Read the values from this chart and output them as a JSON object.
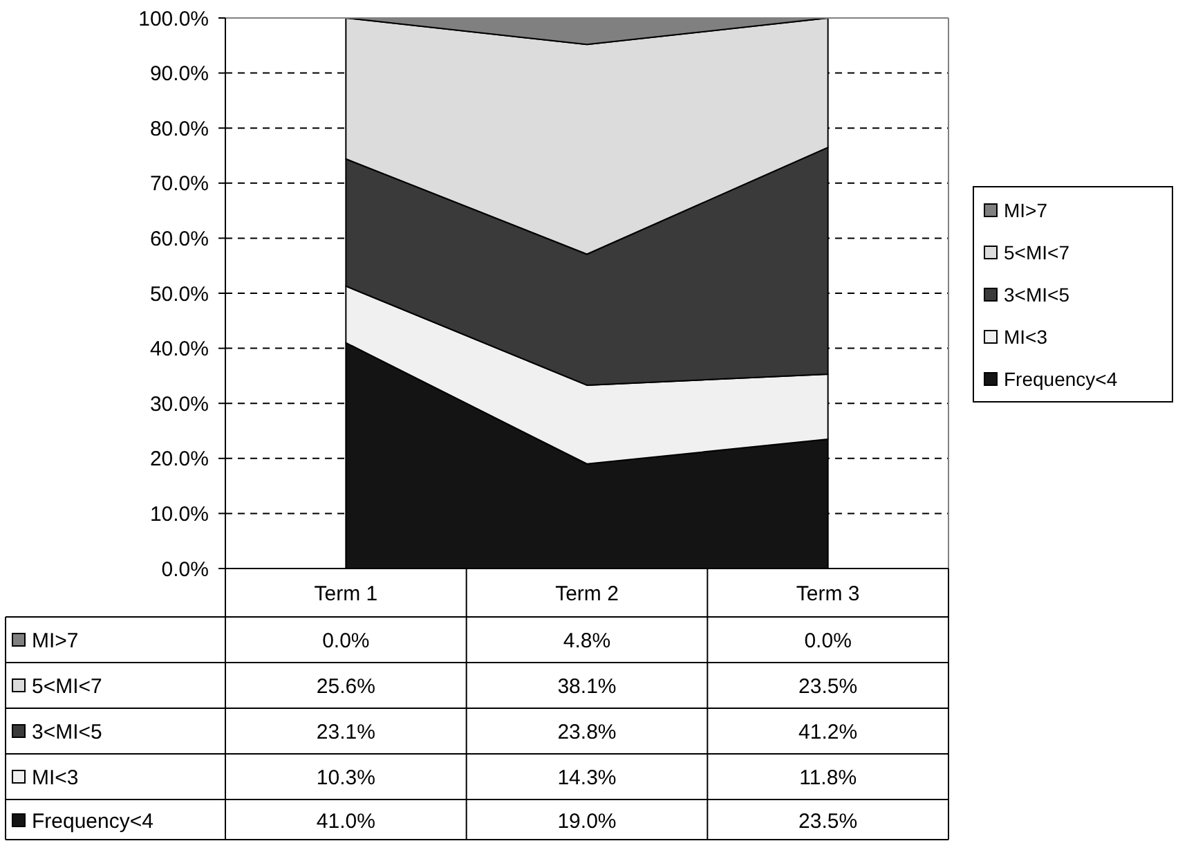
{
  "chart_data": {
    "type": "area",
    "stacked": true,
    "categories": [
      "Term 1",
      "Term 2",
      "Term 3"
    ],
    "ylim": [
      0,
      100
    ],
    "yticks": [
      {
        "value": 0,
        "label": "0.0%"
      },
      {
        "value": 10,
        "label": "10.0%"
      },
      {
        "value": 20,
        "label": "20.0%"
      },
      {
        "value": 30,
        "label": "30.0%"
      },
      {
        "value": 40,
        "label": "40.0%"
      },
      {
        "value": 50,
        "label": "50.0%"
      },
      {
        "value": 60,
        "label": "60.0%"
      },
      {
        "value": 70,
        "label": "70.0%"
      },
      {
        "value": 80,
        "label": "80.0%"
      },
      {
        "value": 90,
        "label": "90.0%"
      },
      {
        "value": 100,
        "label": "100.0%"
      }
    ],
    "grid": "y",
    "legend": "right",
    "series": [
      {
        "name": "Frequency<4",
        "color": "#141414",
        "values": [
          41.0,
          19.0,
          23.5
        ],
        "value_labels": [
          "41.0%",
          "19.0%",
          "23.5%"
        ]
      },
      {
        "name": "MI<3",
        "color": "#f0f0f0",
        "values": [
          10.3,
          14.3,
          11.8
        ],
        "value_labels": [
          "10.3%",
          "14.3%",
          "11.8%"
        ]
      },
      {
        "name": "3<MI<5",
        "color": "#3a3a3a",
        "values": [
          23.1,
          23.8,
          41.2
        ],
        "value_labels": [
          "23.1%",
          "23.8%",
          "41.2%"
        ]
      },
      {
        "name": "5<MI<7",
        "color": "#dcdcdc",
        "values": [
          25.6,
          38.1,
          23.5
        ],
        "value_labels": [
          "25.6%",
          "38.1%",
          "23.5%"
        ]
      },
      {
        "name": "MI>7",
        "color": "#808080",
        "values": [
          0.0,
          4.8,
          0.0
        ],
        "value_labels": [
          "0.0%",
          "4.8%",
          "0.0%"
        ]
      }
    ]
  }
}
